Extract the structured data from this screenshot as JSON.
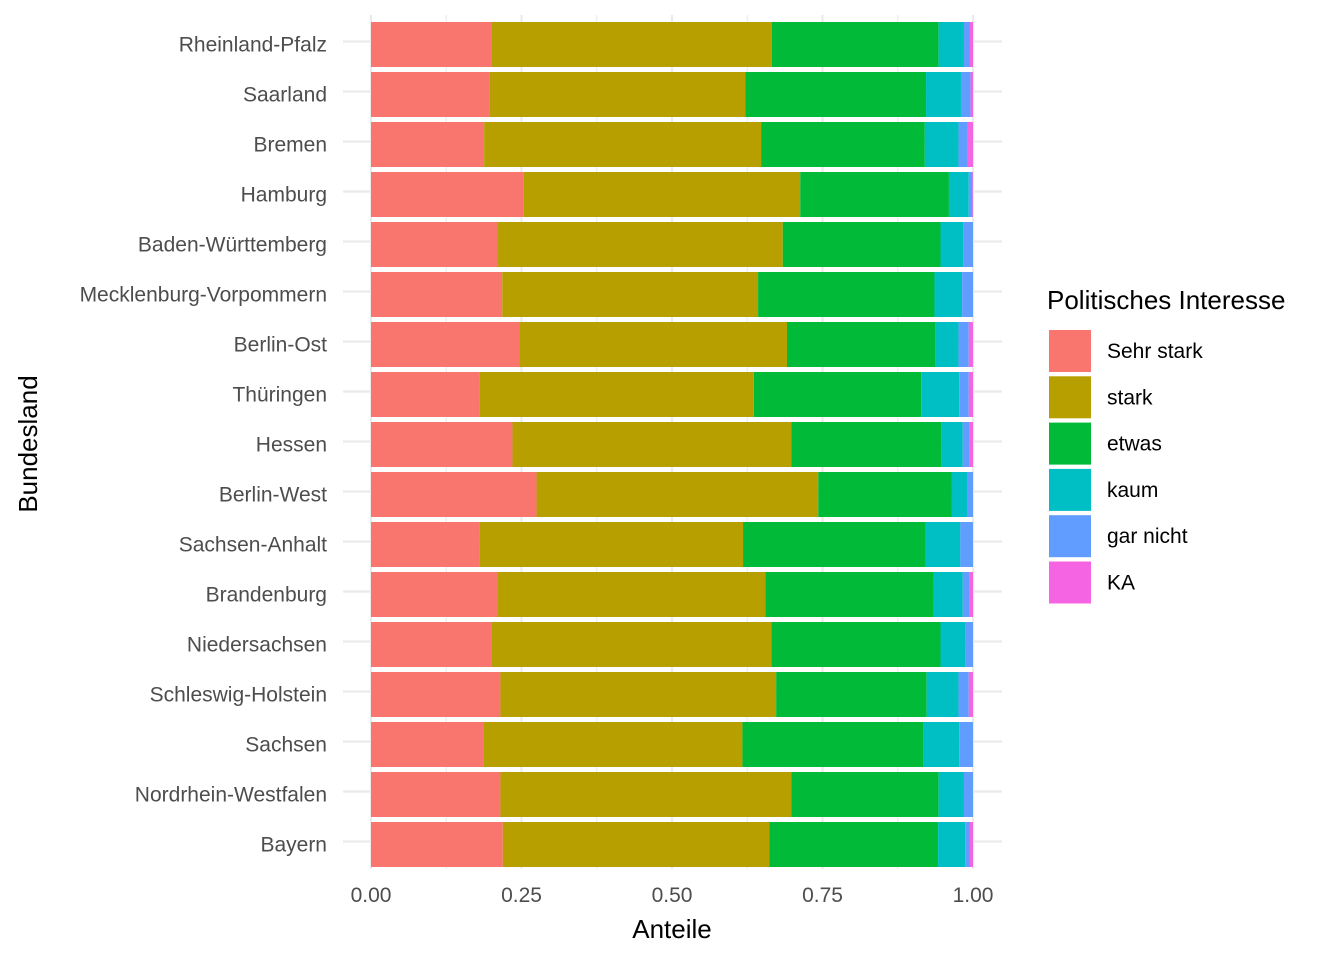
{
  "chart_data": {
    "type": "bar",
    "orientation": "horizontal",
    "stacked": "fill",
    "xlabel": "Anteile",
    "ylabel": "Bundesland",
    "xlim": [
      0,
      1
    ],
    "x_ticks": [
      "0.00",
      "0.25",
      "0.50",
      "0.75",
      "1.00"
    ],
    "grid": true,
    "legend": {
      "title": "Politisches Interesse",
      "position": "right"
    },
    "categories": [
      "Rheinland-Pfalz",
      "Saarland",
      "Bremen",
      "Hamburg",
      "Baden-Württemberg",
      "Mecklenburg-Vorpommern",
      "Berlin-Ost",
      "Thüringen",
      "Hessen",
      "Berlin-West",
      "Sachsen-Anhalt",
      "Brandenburg",
      "Niedersachsen",
      "Schleswig-Holstein",
      "Sachsen",
      "Nordrhein-Westfalen",
      "Bayern"
    ],
    "series": [
      {
        "name": "Sehr stark",
        "color": "#F8766D",
        "values": [
          0.2,
          0.197,
          0.188,
          0.253,
          0.211,
          0.218,
          0.246,
          0.18,
          0.235,
          0.275,
          0.18,
          0.21,
          0.2,
          0.215,
          0.187,
          0.215,
          0.219
        ]
      },
      {
        "name": "stark",
        "color": "#B79F00",
        "values": [
          0.466,
          0.425,
          0.46,
          0.46,
          0.473,
          0.425,
          0.445,
          0.456,
          0.463,
          0.468,
          0.438,
          0.445,
          0.465,
          0.458,
          0.43,
          0.483,
          0.443
        ]
      },
      {
        "name": "etwas",
        "color": "#00BA38",
        "values": [
          0.277,
          0.3,
          0.272,
          0.247,
          0.262,
          0.293,
          0.247,
          0.278,
          0.25,
          0.222,
          0.303,
          0.28,
          0.281,
          0.25,
          0.3,
          0.245,
          0.28
        ]
      },
      {
        "name": "kaum",
        "color": "#00BFC4",
        "values": [
          0.042,
          0.058,
          0.056,
          0.033,
          0.038,
          0.046,
          0.038,
          0.063,
          0.035,
          0.025,
          0.058,
          0.048,
          0.042,
          0.053,
          0.06,
          0.042,
          0.045
        ]
      },
      {
        "name": "gar nicht",
        "color": "#619CFF",
        "values": [
          0.01,
          0.016,
          0.015,
          0.006,
          0.016,
          0.018,
          0.017,
          0.016,
          0.011,
          0.01,
          0.021,
          0.011,
          0.012,
          0.017,
          0.023,
          0.015,
          0.008
        ]
      },
      {
        "name": "KA",
        "color": "#F564E3",
        "values": [
          0.005,
          0.004,
          0.009,
          0.001,
          0.0,
          0.0,
          0.007,
          0.007,
          0.006,
          0.0,
          0.0,
          0.006,
          0.0,
          0.007,
          0.0,
          0.0,
          0.005
        ]
      }
    ]
  }
}
